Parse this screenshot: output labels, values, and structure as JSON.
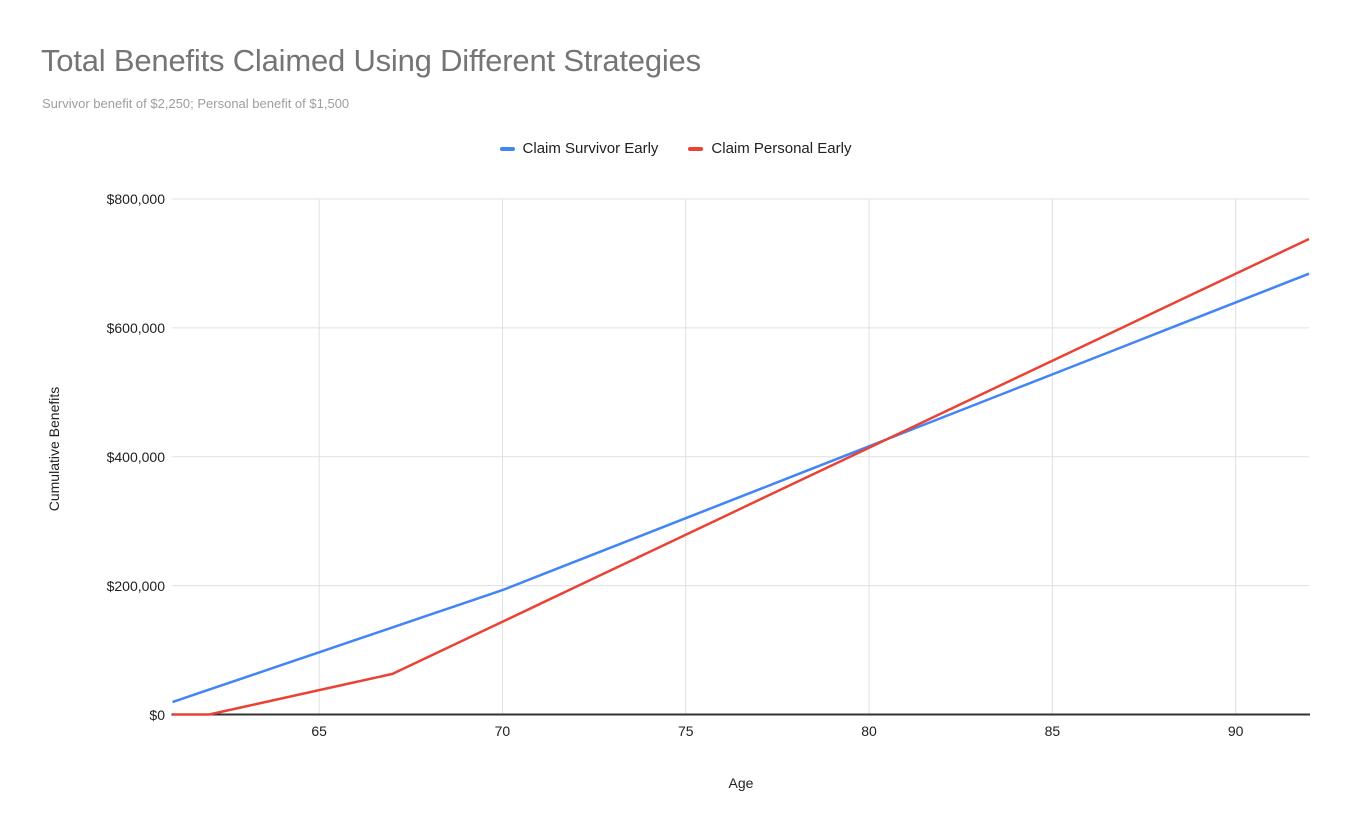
{
  "header": {
    "title": "Total Benefits Claimed Using Different Strategies",
    "subtitle": "Survivor benefit of $2,250; Personal benefit of $1,500"
  },
  "colors": {
    "series_blue": "#4285F4",
    "series_red": "#EA4335",
    "title_gray": "#757575",
    "subtitle_gray": "#9E9E9E",
    "gridline": "#E0E0E0",
    "axis_line": "#333333",
    "axis_label": "#212121",
    "background": "#FFFFFF"
  },
  "chart_data": {
    "type": "line",
    "title": "Total Benefits Claimed Using Different Strategies",
    "subtitle": "Survivor benefit of $2,250; Personal benefit of $1,500",
    "xlabel": "Age",
    "ylabel": "Cumulative Benefits",
    "xlim": [
      61,
      92
    ],
    "ylim": [
      0,
      800000
    ],
    "grid": true,
    "legend_position": "top-center",
    "x_tick_values": [
      65,
      70,
      75,
      80,
      85,
      90
    ],
    "x_tick_labels": [
      "65",
      "70",
      "75",
      "80",
      "85",
      "90"
    ],
    "y_tick_values": [
      0,
      200000,
      400000,
      600000,
      800000
    ],
    "y_tick_labels": [
      "$0",
      "$200,000",
      "$400,000",
      "$600,000",
      "$800,000"
    ],
    "x": [
      61,
      62,
      63,
      64,
      65,
      66,
      67,
      68,
      69,
      70,
      71,
      72,
      73,
      74,
      75,
      76,
      77,
      78,
      79,
      80,
      81,
      82,
      83,
      84,
      85,
      86,
      87,
      88,
      89,
      90,
      91,
      92
    ],
    "series": [
      {
        "name": "Claim Survivor Early",
        "color": "#4285F4",
        "values": [
          19305,
          38610,
          57915,
          77220,
          96525,
          115830,
          135135,
          154440,
          173745,
          193050,
          215370,
          237690,
          260010,
          282330,
          304650,
          326970,
          349290,
          371610,
          393930,
          416250,
          438570,
          460890,
          483210,
          505530,
          527850,
          550170,
          572490,
          594810,
          617130,
          639450,
          661770,
          684090
        ]
      },
      {
        "name": "Claim Personal Early",
        "color": "#EA4335",
        "values": [
          0,
          0,
          12600,
          25200,
          37800,
          50400,
          63000,
          90000,
          117000,
          144000,
          171000,
          198000,
          225000,
          252000,
          279000,
          306000,
          333000,
          360000,
          387000,
          414000,
          441000,
          468000,
          495000,
          522000,
          549000,
          576000,
          603000,
          630000,
          657000,
          684000,
          711000,
          738000
        ]
      }
    ]
  }
}
